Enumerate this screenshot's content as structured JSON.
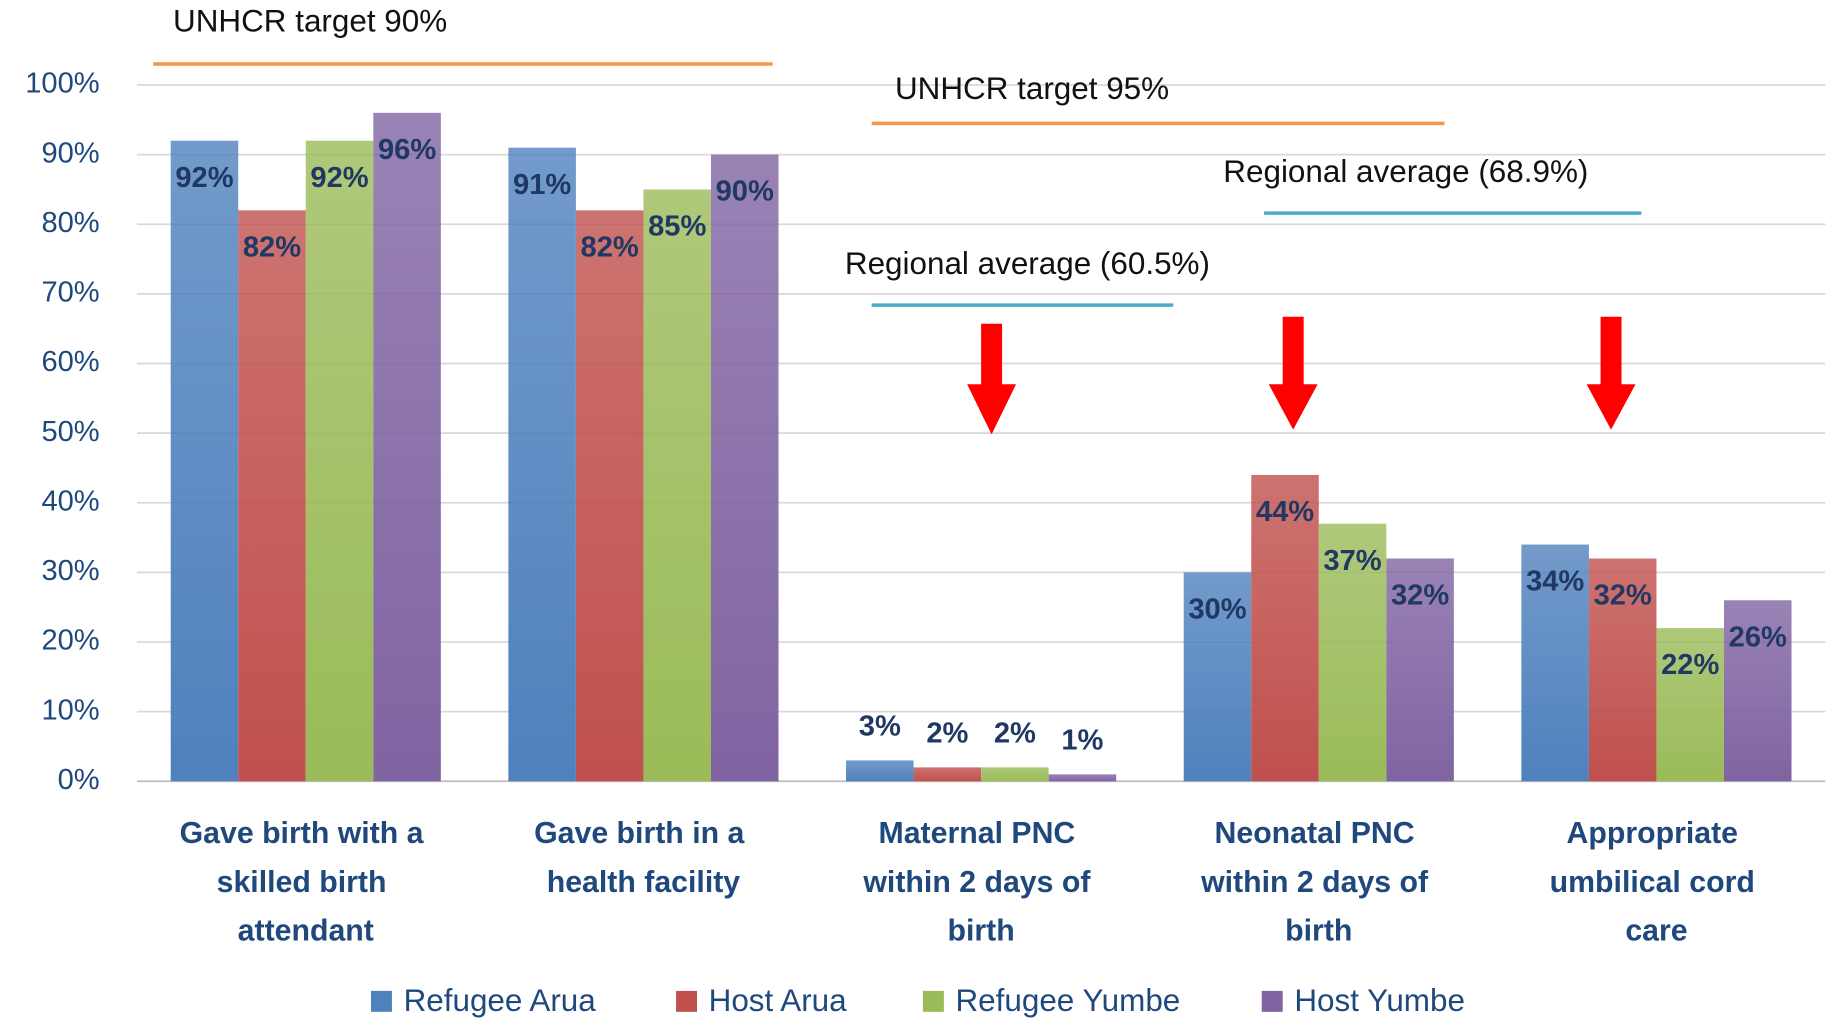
{
  "chart_data": {
    "type": "bar",
    "categories": [
      "Gave birth with a skilled birth attendant",
      "Gave birth in a health facility",
      "Maternal PNC within 2 days of birth",
      "Neonatal PNC within 2 days of birth",
      "Appropriate umbilical cord care"
    ],
    "series": [
      {
        "name": "Refugee Arua",
        "color": "#4f81bd",
        "values": [
          92,
          91,
          3,
          30,
          34
        ],
        "value_labels": [
          "92%",
          "91%",
          "3%",
          "30%",
          "34%"
        ]
      },
      {
        "name": "Host Arua",
        "color": "#c0504d",
        "values": [
          82,
          82,
          2,
          44,
          32
        ],
        "value_labels": [
          "82%",
          "82%",
          "2%",
          "44%",
          "32%"
        ]
      },
      {
        "name": "Refugee Yumbe",
        "color": "#9bbb59",
        "values": [
          92,
          85,
          2,
          37,
          22
        ],
        "value_labels": [
          "92%",
          "85%",
          "2%",
          "37%",
          "22%"
        ]
      },
      {
        "name": "Host Yumbe",
        "color": "#8064a2",
        "values": [
          96,
          90,
          1,
          32,
          26
        ],
        "value_labels": [
          "96%",
          "90%",
          "1%",
          "32%",
          "26%"
        ]
      }
    ],
    "ylim": [
      0,
      100
    ],
    "yticks": [
      {
        "value": 0,
        "label": "0%"
      },
      {
        "value": 10,
        "label": "10%"
      },
      {
        "value": 20,
        "label": "20%"
      },
      {
        "value": 30,
        "label": "30%"
      },
      {
        "value": 40,
        "label": "40%"
      },
      {
        "value": 50,
        "label": "50%"
      },
      {
        "value": 60,
        "label": "60%"
      },
      {
        "value": 70,
        "label": "70%"
      },
      {
        "value": 80,
        "label": "80%"
      },
      {
        "value": 90,
        "label": "90%"
      },
      {
        "value": 100,
        "label": "100%"
      }
    ],
    "grid": true,
    "legend": "bottom",
    "annotations": [
      "UNHCR target 90%",
      "UNHCR target 95%",
      "Regional average (68.9%)",
      "Regional average (60.5%)"
    ]
  }
}
